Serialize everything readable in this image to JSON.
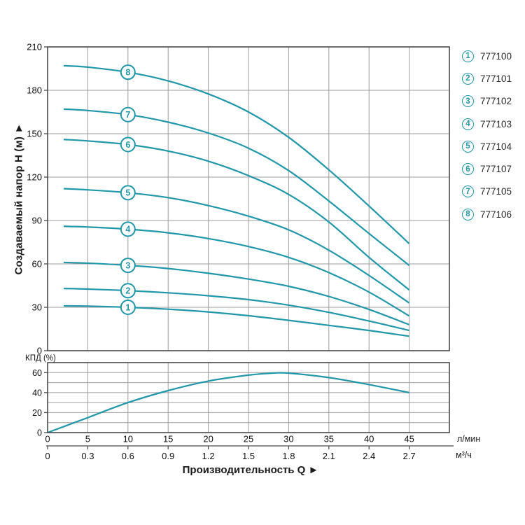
{
  "colors": {
    "curve": "#2197a9",
    "grid": "#9e9e9e",
    "frame": "#4a4a4a",
    "text": "#111111",
    "background": "#ffffff"
  },
  "chart_data": {
    "type": "line",
    "title": "",
    "main_plot": {
      "ylabel": "Создаваемый напор Н (м) ►",
      "y_ticks": [
        210,
        180,
        150,
        120,
        90,
        60,
        30,
        0
      ],
      "y_range": [
        0,
        210
      ],
      "x_range": [
        0,
        50
      ],
      "x_ticks": [
        0,
        5,
        10,
        15,
        20,
        25,
        30,
        35,
        40,
        45
      ],
      "grid": true,
      "q": [
        2,
        5,
        10,
        15,
        20,
        25,
        30,
        35,
        40,
        45
      ],
      "series": [
        {
          "num": "1",
          "name": "777100",
          "h": [
            31,
            30.8,
            30,
            28.7,
            26.8,
            24.2,
            21,
            17.5,
            14,
            10
          ]
        },
        {
          "num": "2",
          "name": "777101",
          "h": [
            43,
            42.6,
            41.5,
            40,
            38,
            35.3,
            31.5,
            26.5,
            20.5,
            14
          ]
        },
        {
          "num": "3",
          "name": "777102",
          "h": [
            61,
            60.5,
            59,
            56.8,
            53.5,
            49.5,
            44.5,
            37.5,
            28.5,
            18
          ]
        },
        {
          "num": "4",
          "name": "777103",
          "h": [
            86,
            85.5,
            84,
            81.5,
            77.5,
            72,
            64.5,
            54,
            40.5,
            24
          ]
        },
        {
          "num": "5",
          "name": "777104",
          "h": [
            112,
            111.2,
            109.2,
            105.8,
            100.3,
            93,
            83.5,
            69.5,
            52,
            33
          ]
        },
        {
          "num": "6",
          "name": "777107",
          "h": [
            146,
            145,
            142.5,
            138,
            131,
            121,
            108,
            89,
            64.5,
            42
          ]
        },
        {
          "num": "7",
          "name": "777105",
          "h": [
            167,
            166,
            163.2,
            158,
            150.5,
            140,
            124.5,
            103.5,
            81,
            59
          ]
        },
        {
          "num": "8",
          "name": "777106",
          "h": [
            197,
            196,
            192.5,
            186.5,
            177.5,
            165,
            147.5,
            125,
            100,
            74
          ]
        }
      ],
      "label_at_q": 10
    },
    "efficiency_plot": {
      "ylabel": "КПД (%)",
      "y_ticks": [
        60,
        40,
        20,
        0
      ],
      "y_range": [
        0,
        70
      ],
      "grid_step": 10,
      "q": [
        0,
        5,
        10,
        15,
        20,
        25,
        28,
        30,
        35,
        40,
        45
      ],
      "eff": [
        0,
        15,
        30,
        42,
        51.5,
        57.5,
        59.5,
        59.5,
        55,
        48,
        40
      ]
    },
    "x_axis": {
      "xlabel": "Производительность Q ►",
      "unit_primary": "л/мин",
      "unit_secondary": "м³/ч",
      "ticks_q": [
        0,
        5,
        10,
        15,
        20,
        25,
        30,
        35,
        40,
        45
      ],
      "labels_primary": [
        "0",
        "5",
        "10",
        "15",
        "20",
        "25",
        "30",
        "35",
        "40",
        "45"
      ],
      "labels_secondary": [
        "0",
        "0.3",
        "0.6",
        "0.9",
        "1.2",
        "1.5",
        "1.8",
        "2.1",
        "2.4",
        "2.7"
      ]
    }
  },
  "legend": {
    "items": [
      {
        "num": "1",
        "label": "777100"
      },
      {
        "num": "2",
        "label": "777101"
      },
      {
        "num": "3",
        "label": "777102"
      },
      {
        "num": "4",
        "label": "777103"
      },
      {
        "num": "5",
        "label": "777104"
      },
      {
        "num": "6",
        "label": "777107"
      },
      {
        "num": "7",
        "label": "777105"
      },
      {
        "num": "8",
        "label": "777106"
      }
    ]
  }
}
